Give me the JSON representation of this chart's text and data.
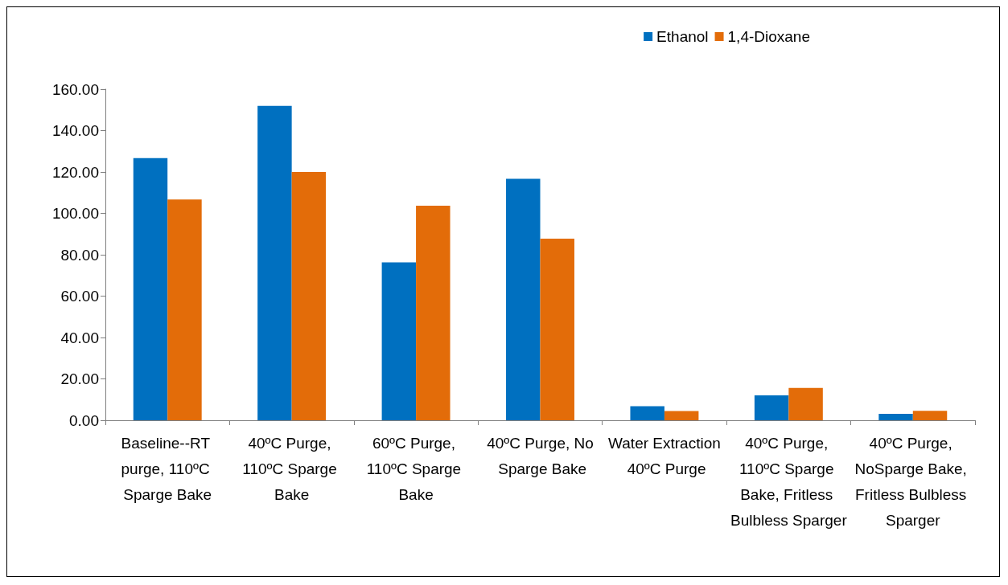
{
  "chart_data": {
    "type": "bar",
    "categories": [
      "Baseline--RT purge, 110ºC Sparge Bake",
      "40ºC Purge, 110ºC Sparge Bake",
      "60ºC Purge, 110ºC Sparge Bake",
      "40ºC Purge, No Sparge Bake",
      "Water Extraction 40ºC Purge",
      "40ºC Purge, 110ºC Sparge Bake, Fritless Bulbless Sparger",
      "40ºC Purge, NoSparge Bake, Fritless Bulbless Sparger"
    ],
    "series": [
      {
        "name": "Ethanol",
        "color": "#0070c0",
        "values": [
          126.7,
          151.9,
          76.3,
          116.7,
          6.8,
          12.0,
          3.1
        ]
      },
      {
        "name": "1,4-Dioxane",
        "color": "#e36c09",
        "values": [
          106.7,
          120.0,
          103.7,
          87.8,
          4.5,
          15.6,
          4.6
        ]
      }
    ],
    "ylim": [
      0,
      160
    ],
    "yticks": [
      {
        "value": 0,
        "label": "0.00"
      },
      {
        "value": 20,
        "label": "20.00"
      },
      {
        "value": 40,
        "label": "40.00"
      },
      {
        "value": 60,
        "label": "60.00"
      },
      {
        "value": 80,
        "label": "80.00"
      },
      {
        "value": 100,
        "label": "100.00"
      },
      {
        "value": 120,
        "label": "120.00"
      },
      {
        "value": 140,
        "label": "140.00"
      },
      {
        "value": 160,
        "label": "160.00"
      }
    ],
    "grid": false,
    "legend": "top right"
  }
}
